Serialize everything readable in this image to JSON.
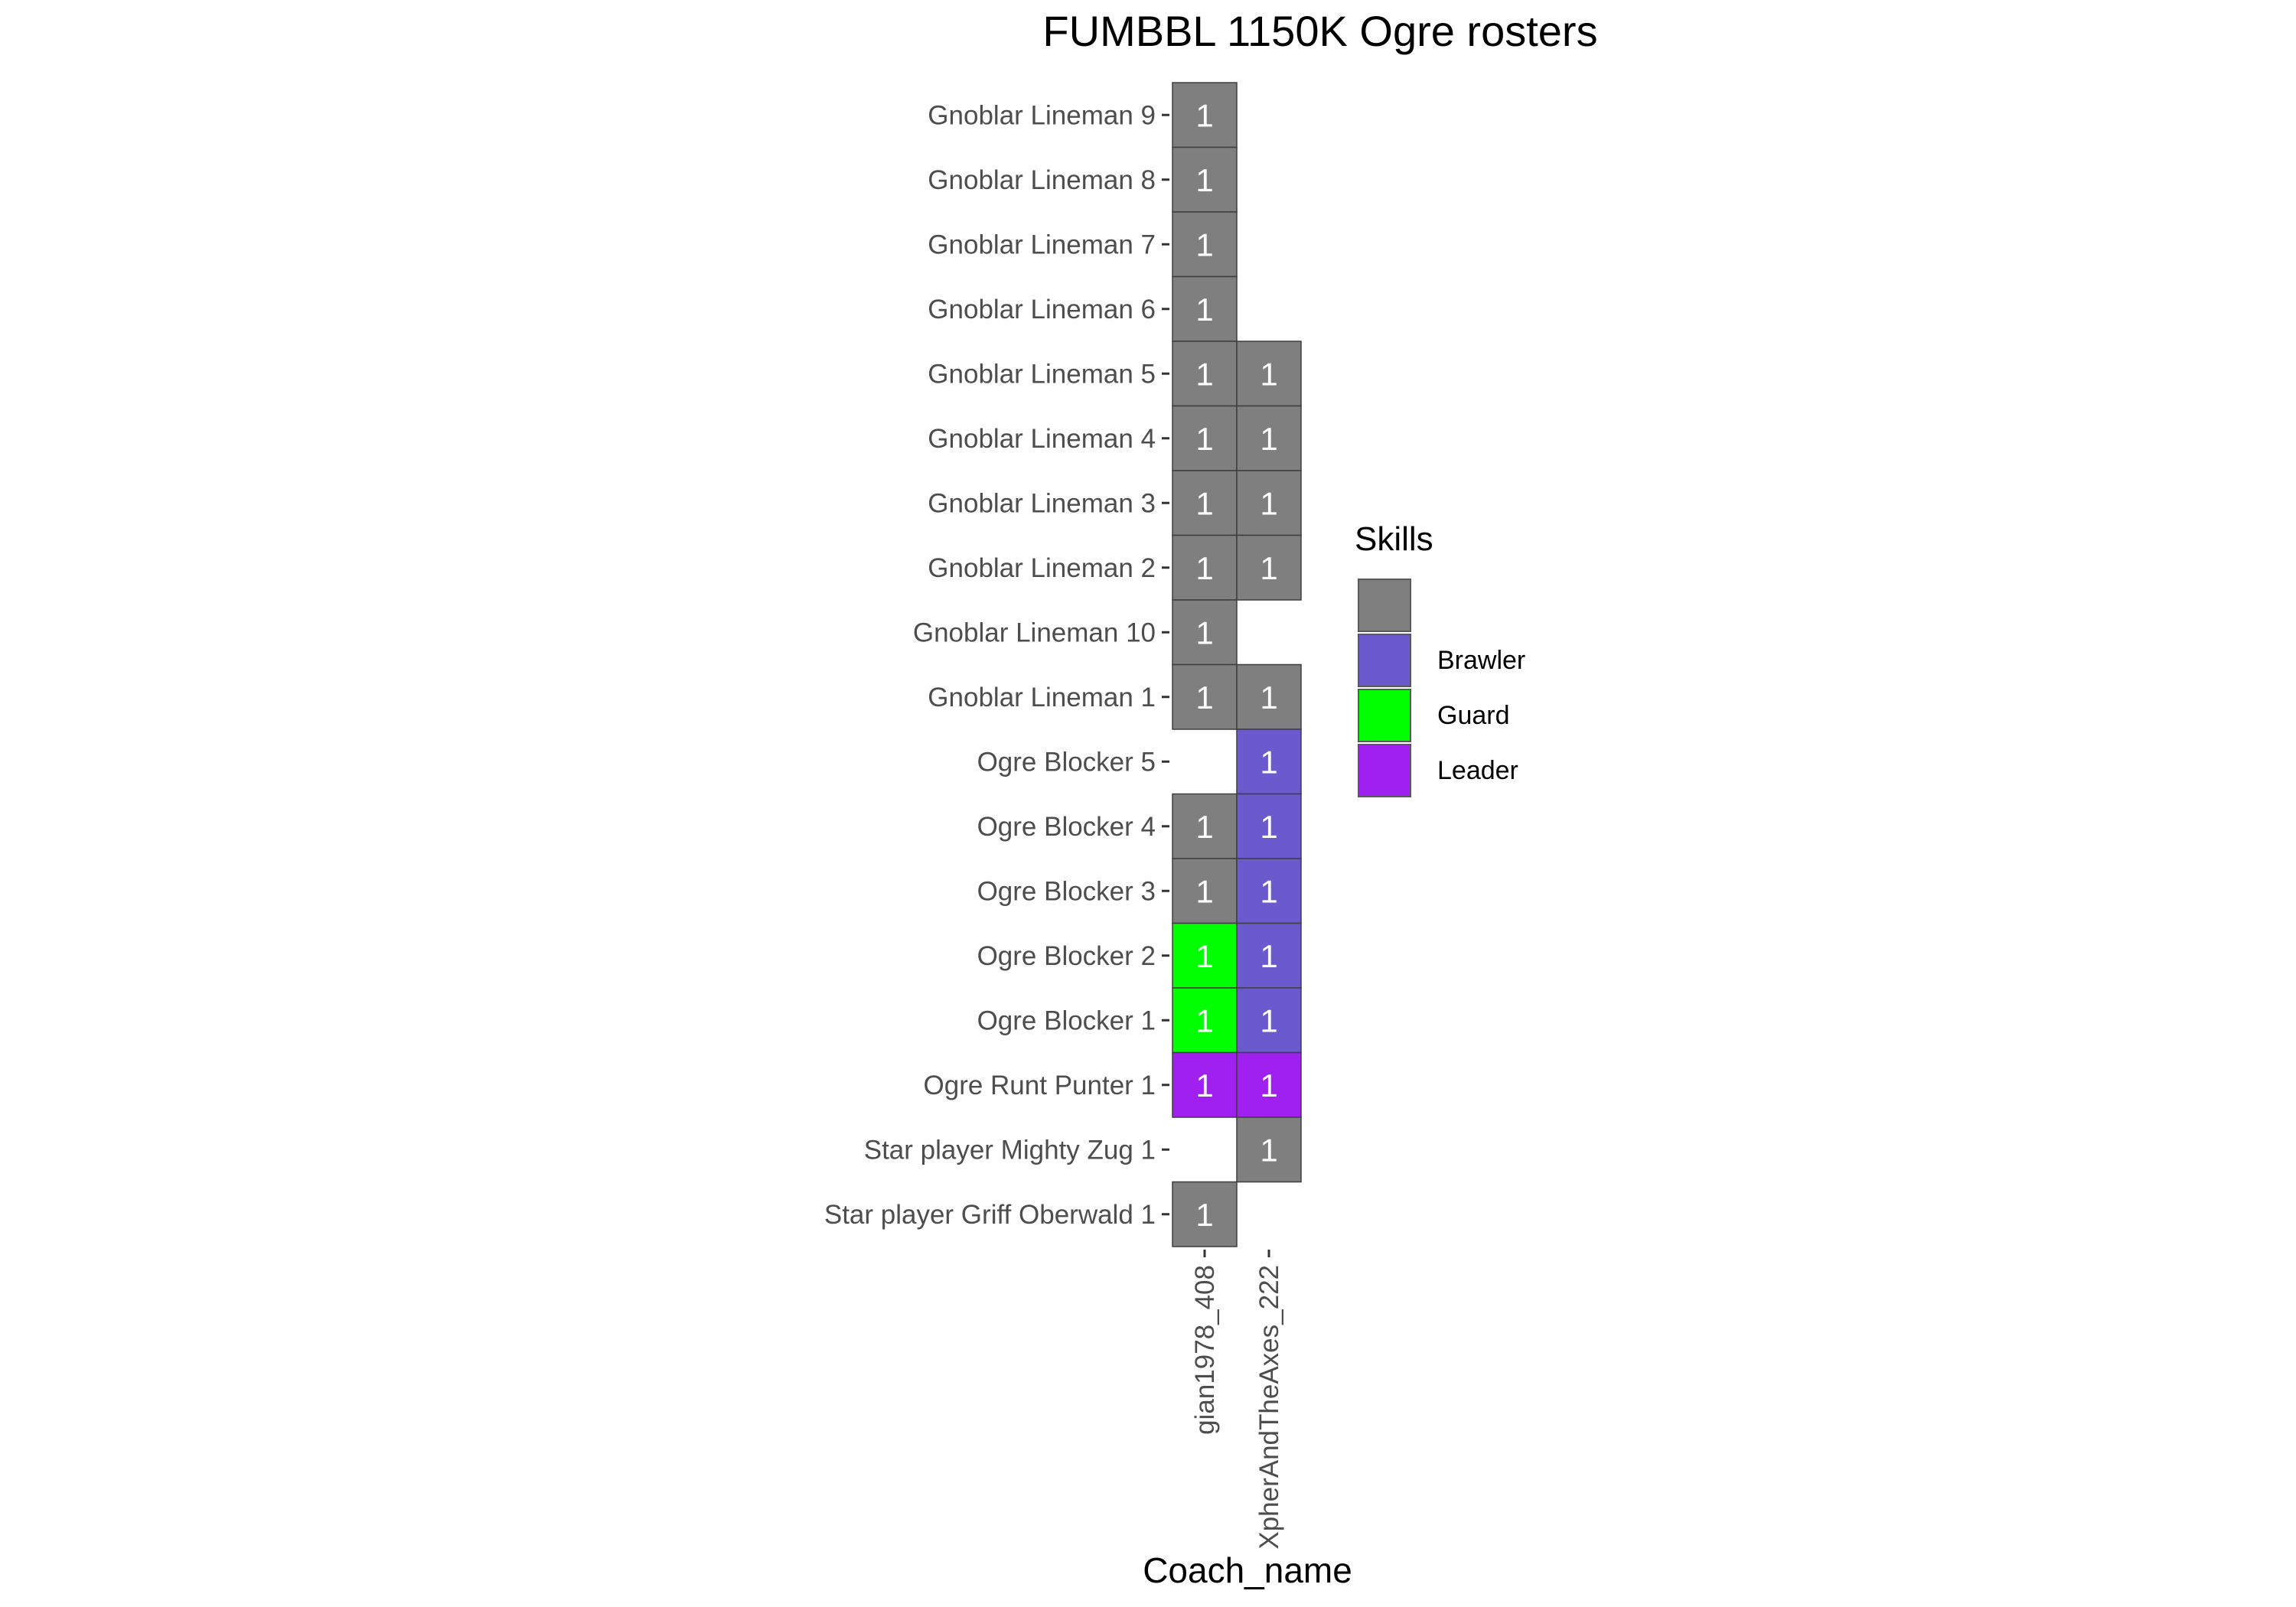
{
  "chart_data": {
    "type": "heatmap",
    "title": "FUMBBL 1150K Ogre rosters",
    "xlabel": "Coach_name",
    "ylabel": "",
    "x_categories": [
      "gian1978_408",
      "XpherAndTheAxes_222"
    ],
    "y_categories": [
      "Gnoblar Lineman 9",
      "Gnoblar Lineman 8",
      "Gnoblar Lineman 7",
      "Gnoblar Lineman 6",
      "Gnoblar Lineman 5",
      "Gnoblar Lineman 4",
      "Gnoblar Lineman 3",
      "Gnoblar Lineman 2",
      "Gnoblar Lineman 10",
      "Gnoblar Lineman 1",
      "Ogre Blocker 5",
      "Ogre Blocker 4",
      "Ogre Blocker 3",
      "Ogre Blocker 2",
      "Ogre Blocker 1",
      "Ogre Runt Punter 1",
      "Star player Mighty Zug 1",
      "Star player Griff Oberwald 1"
    ],
    "cells": [
      {
        "x": "gian1978_408",
        "y": "Gnoblar Lineman 9",
        "value": 1,
        "skill": ""
      },
      {
        "x": "gian1978_408",
        "y": "Gnoblar Lineman 8",
        "value": 1,
        "skill": ""
      },
      {
        "x": "gian1978_408",
        "y": "Gnoblar Lineman 7",
        "value": 1,
        "skill": ""
      },
      {
        "x": "gian1978_408",
        "y": "Gnoblar Lineman 6",
        "value": 1,
        "skill": ""
      },
      {
        "x": "gian1978_408",
        "y": "Gnoblar Lineman 5",
        "value": 1,
        "skill": ""
      },
      {
        "x": "XpherAndTheAxes_222",
        "y": "Gnoblar Lineman 5",
        "value": 1,
        "skill": ""
      },
      {
        "x": "gian1978_408",
        "y": "Gnoblar Lineman 4",
        "value": 1,
        "skill": ""
      },
      {
        "x": "XpherAndTheAxes_222",
        "y": "Gnoblar Lineman 4",
        "value": 1,
        "skill": ""
      },
      {
        "x": "gian1978_408",
        "y": "Gnoblar Lineman 3",
        "value": 1,
        "skill": ""
      },
      {
        "x": "XpherAndTheAxes_222",
        "y": "Gnoblar Lineman 3",
        "value": 1,
        "skill": ""
      },
      {
        "x": "gian1978_408",
        "y": "Gnoblar Lineman 2",
        "value": 1,
        "skill": ""
      },
      {
        "x": "XpherAndTheAxes_222",
        "y": "Gnoblar Lineman 2",
        "value": 1,
        "skill": ""
      },
      {
        "x": "gian1978_408",
        "y": "Gnoblar Lineman 10",
        "value": 1,
        "skill": ""
      },
      {
        "x": "gian1978_408",
        "y": "Gnoblar Lineman 1",
        "value": 1,
        "skill": ""
      },
      {
        "x": "XpherAndTheAxes_222",
        "y": "Gnoblar Lineman 1",
        "value": 1,
        "skill": ""
      },
      {
        "x": "XpherAndTheAxes_222",
        "y": "Ogre Blocker 5",
        "value": 1,
        "skill": "Brawler"
      },
      {
        "x": "gian1978_408",
        "y": "Ogre Blocker 4",
        "value": 1,
        "skill": ""
      },
      {
        "x": "XpherAndTheAxes_222",
        "y": "Ogre Blocker 4",
        "value": 1,
        "skill": "Brawler"
      },
      {
        "x": "gian1978_408",
        "y": "Ogre Blocker 3",
        "value": 1,
        "skill": ""
      },
      {
        "x": "XpherAndTheAxes_222",
        "y": "Ogre Blocker 3",
        "value": 1,
        "skill": "Brawler"
      },
      {
        "x": "gian1978_408",
        "y": "Ogre Blocker 2",
        "value": 1,
        "skill": "Guard"
      },
      {
        "x": "XpherAndTheAxes_222",
        "y": "Ogre Blocker 2",
        "value": 1,
        "skill": "Brawler"
      },
      {
        "x": "gian1978_408",
        "y": "Ogre Blocker 1",
        "value": 1,
        "skill": "Guard"
      },
      {
        "x": "XpherAndTheAxes_222",
        "y": "Ogre Blocker 1",
        "value": 1,
        "skill": "Brawler"
      },
      {
        "x": "gian1978_408",
        "y": "Ogre Runt Punter 1",
        "value": 1,
        "skill": "Leader"
      },
      {
        "x": "XpherAndTheAxes_222",
        "y": "Ogre Runt Punter 1",
        "value": 1,
        "skill": "Leader"
      },
      {
        "x": "XpherAndTheAxes_222",
        "y": "Star player Mighty Zug 1",
        "value": 1,
        "skill": ""
      },
      {
        "x": "gian1978_408",
        "y": "Star player Griff Oberwald 1",
        "value": 1,
        "skill": ""
      }
    ],
    "legend": {
      "title": "Skills",
      "position": "right",
      "entries": [
        {
          "label": "",
          "color": "#7f7f7f"
        },
        {
          "label": "Brawler",
          "color": "#6a5acd"
        },
        {
          "label": "Guard",
          "color": "#00ff00"
        },
        {
          "label": "Leader",
          "color": "#a020f0"
        }
      ]
    },
    "grid": false
  }
}
